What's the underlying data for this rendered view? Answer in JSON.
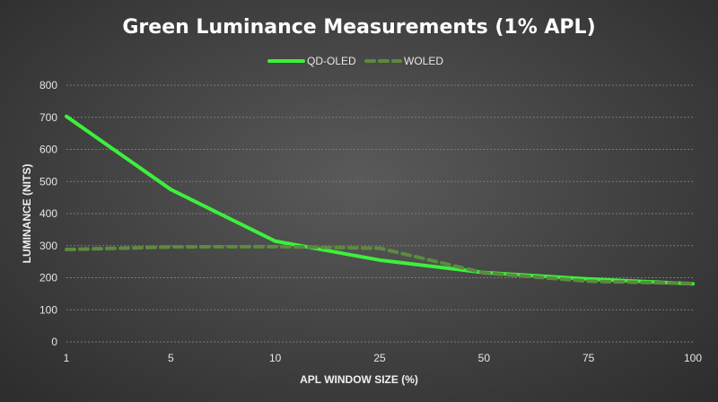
{
  "chart_data": {
    "type": "line",
    "title": "Green Luminance Measurements (1% APL)",
    "xlabel": "APL WINDOW SIZE (%)",
    "ylabel": "LUMINANCE (NITS)",
    "categories": [
      "1",
      "5",
      "10",
      "25",
      "50",
      "75",
      "100"
    ],
    "ylim": [
      0,
      800
    ],
    "yticks": [
      0,
      100,
      200,
      300,
      400,
      500,
      600,
      700,
      800
    ],
    "grid": true,
    "legend": "top-center",
    "series": [
      {
        "name": "QD-OLED",
        "values": [
          703,
          475,
          314,
          255,
          216,
          196,
          181
        ],
        "color": "#3cf03c",
        "style": "solid"
      },
      {
        "name": "WOLED",
        "values": [
          288,
          296,
          297,
          292,
          215,
          189,
          182
        ],
        "color": "#5c8a3e",
        "style": "dashed"
      }
    ]
  }
}
